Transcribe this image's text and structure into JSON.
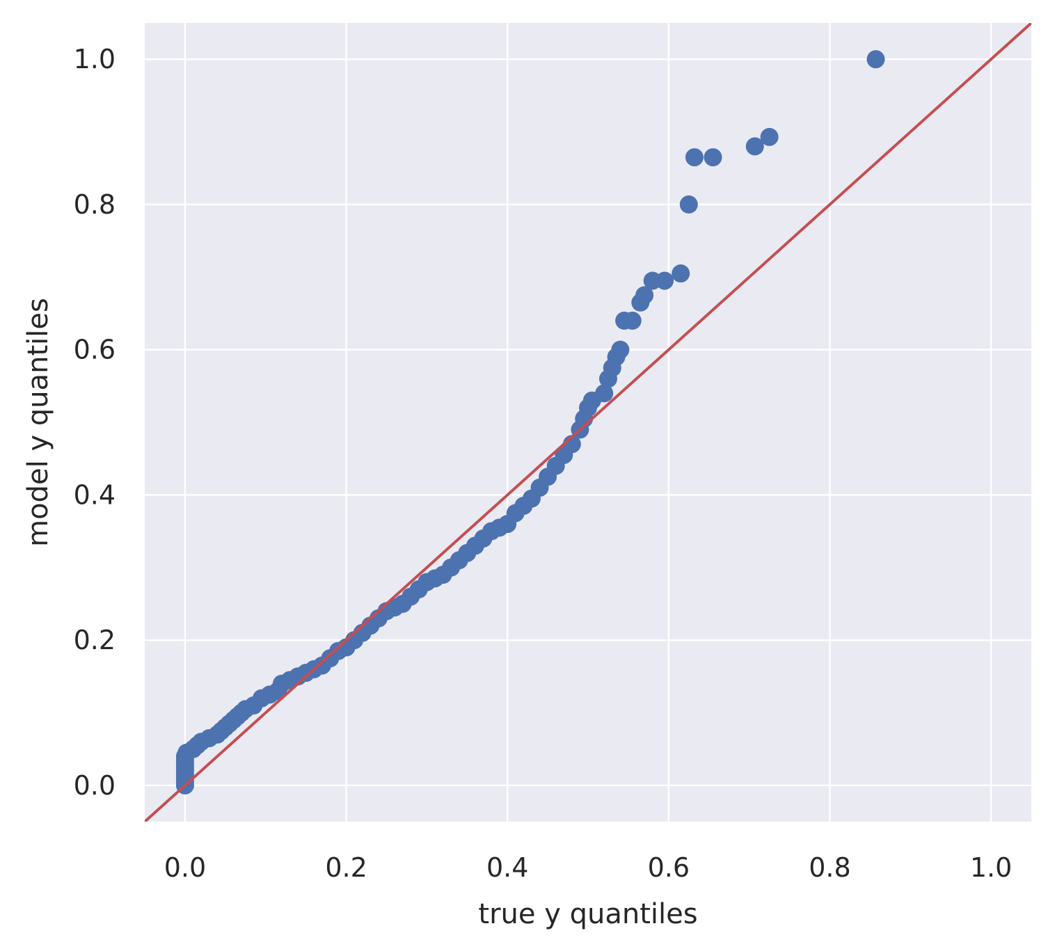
{
  "chart_data": {
    "type": "scatter",
    "title": "",
    "xlabel": "true y quantiles",
    "ylabel": "model y quantiles",
    "xlim": [
      -0.05,
      1.05
    ],
    "ylim": [
      -0.05,
      1.05
    ],
    "xticks": [
      0.0,
      0.2,
      0.4,
      0.6,
      0.8,
      1.0
    ],
    "yticks": [
      0.0,
      0.2,
      0.4,
      0.6,
      0.8,
      1.0
    ],
    "xtick_labels": [
      "0.0",
      "0.2",
      "0.4",
      "0.6",
      "0.8",
      "1.0"
    ],
    "ytick_labels": [
      "0.0",
      "0.2",
      "0.4",
      "0.6",
      "0.8",
      "1.0"
    ],
    "grid": true,
    "background_color": "#eaeaf2",
    "grid_color": "#ffffff",
    "marker_color": "#4c72b0",
    "reference_line": {
      "x": [
        -0.05,
        1.05
      ],
      "y": [
        -0.05,
        1.05
      ],
      "color": "#c44e52"
    },
    "series": [
      {
        "points": [
          [
            0.0,
            0.0
          ],
          [
            0.0,
            0.005
          ],
          [
            0.0,
            0.01
          ],
          [
            0.0,
            0.015
          ],
          [
            0.0,
            0.02
          ],
          [
            0.0,
            0.025
          ],
          [
            0.0,
            0.03
          ],
          [
            0.0,
            0.035
          ],
          [
            0.0,
            0.04
          ],
          [
            0.002,
            0.045
          ],
          [
            0.01,
            0.05
          ],
          [
            0.015,
            0.055
          ],
          [
            0.02,
            0.06
          ],
          [
            0.03,
            0.065
          ],
          [
            0.04,
            0.07
          ],
          [
            0.045,
            0.075
          ],
          [
            0.05,
            0.08
          ],
          [
            0.055,
            0.085
          ],
          [
            0.06,
            0.09
          ],
          [
            0.065,
            0.095
          ],
          [
            0.07,
            0.1
          ],
          [
            0.075,
            0.105
          ],
          [
            0.085,
            0.11
          ],
          [
            0.095,
            0.12
          ],
          [
            0.105,
            0.125
          ],
          [
            0.115,
            0.13
          ],
          [
            0.12,
            0.14
          ],
          [
            0.13,
            0.145
          ],
          [
            0.14,
            0.15
          ],
          [
            0.15,
            0.155
          ],
          [
            0.16,
            0.16
          ],
          [
            0.17,
            0.165
          ],
          [
            0.18,
            0.175
          ],
          [
            0.19,
            0.185
          ],
          [
            0.2,
            0.19
          ],
          [
            0.21,
            0.2
          ],
          [
            0.22,
            0.21
          ],
          [
            0.23,
            0.22
          ],
          [
            0.24,
            0.23
          ],
          [
            0.25,
            0.24
          ],
          [
            0.26,
            0.245
          ],
          [
            0.27,
            0.25
          ],
          [
            0.28,
            0.26
          ],
          [
            0.29,
            0.27
          ],
          [
            0.3,
            0.28
          ],
          [
            0.31,
            0.285
          ],
          [
            0.32,
            0.29
          ],
          [
            0.33,
            0.3
          ],
          [
            0.34,
            0.31
          ],
          [
            0.35,
            0.32
          ],
          [
            0.36,
            0.33
          ],
          [
            0.37,
            0.34
          ],
          [
            0.38,
            0.35
          ],
          [
            0.39,
            0.355
          ],
          [
            0.4,
            0.36
          ],
          [
            0.41,
            0.375
          ],
          [
            0.42,
            0.385
          ],
          [
            0.43,
            0.395
          ],
          [
            0.44,
            0.41
          ],
          [
            0.45,
            0.425
          ],
          [
            0.46,
            0.44
          ],
          [
            0.47,
            0.455
          ],
          [
            0.48,
            0.47
          ],
          [
            0.49,
            0.49
          ],
          [
            0.495,
            0.505
          ],
          [
            0.5,
            0.52
          ],
          [
            0.505,
            0.53
          ],
          [
            0.52,
            0.54
          ],
          [
            0.525,
            0.56
          ],
          [
            0.53,
            0.575
          ],
          [
            0.535,
            0.59
          ],
          [
            0.54,
            0.6
          ],
          [
            0.545,
            0.64
          ],
          [
            0.555,
            0.64
          ],
          [
            0.565,
            0.665
          ],
          [
            0.57,
            0.675
          ],
          [
            0.58,
            0.695
          ],
          [
            0.595,
            0.695
          ],
          [
            0.615,
            0.705
          ],
          [
            0.625,
            0.8
          ],
          [
            0.632,
            0.865
          ],
          [
            0.655,
            0.865
          ],
          [
            0.707,
            0.88
          ],
          [
            0.725,
            0.893
          ],
          [
            0.857,
            1.0
          ]
        ]
      }
    ]
  }
}
